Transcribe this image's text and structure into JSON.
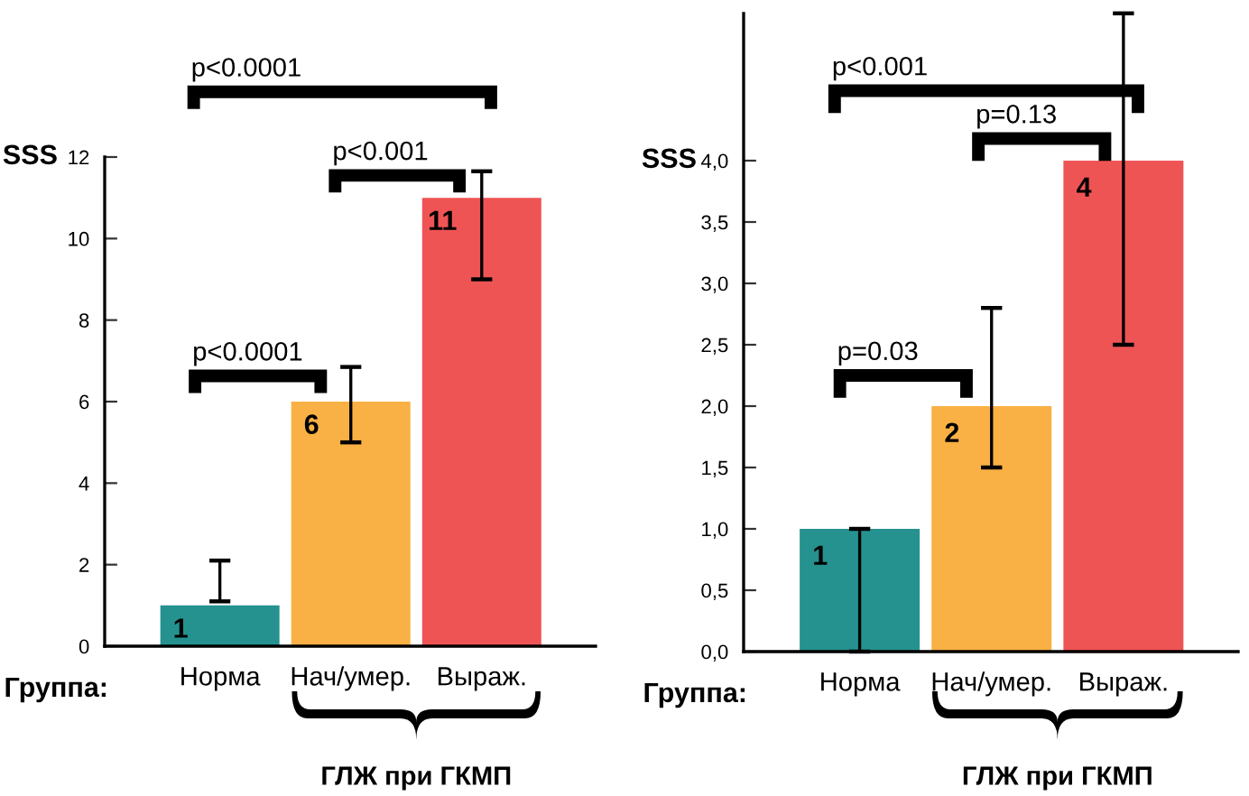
{
  "chart_data": [
    {
      "type": "bar",
      "ylabel": "SSS",
      "xlabel": "Группа:",
      "categories": [
        "Норма",
        "Нач/умер.",
        "Выраж."
      ],
      "values": [
        1,
        6,
        11
      ],
      "colors": [
        "#25928f",
        "#f9b044",
        "#ef5455"
      ],
      "errors": [
        [
          1.1,
          2.1
        ],
        [
          5.0,
          6.85
        ],
        [
          9.0,
          11.65
        ]
      ],
      "data_labels": true,
      "ylim": [
        0,
        12
      ],
      "yticks": [
        0,
        2,
        4,
        6,
        8,
        10,
        12
      ],
      "grid": false,
      "legend": false,
      "annotations": [
        "p<0.0001",
        "p<0.001",
        "p<0.0001",
        "ГЛЖ при ГКМП"
      ]
    },
    {
      "type": "bar",
      "ylabel": "SSS",
      "xlabel": "Группа:",
      "categories": [
        "Норма",
        "Нач/умер.",
        "Выраж."
      ],
      "values": [
        1,
        2,
        4
      ],
      "colors": [
        "#25928f",
        "#f9b044",
        "#ef5455"
      ],
      "errors": [
        [
          0.0,
          1.0
        ],
        [
          1.5,
          2.8
        ],
        [
          2.5,
          5.2
        ]
      ],
      "data_labels": true,
      "ylim": [
        0,
        5.2
      ],
      "yticks": [
        {
          "value": 0,
          "label": "0,0"
        },
        {
          "value": 0.5,
          "label": "0,5"
        },
        {
          "value": 1,
          "label": "1,0"
        },
        {
          "value": 1.5,
          "label": "1,5"
        },
        {
          "value": 2,
          "label": "2,0"
        },
        {
          "value": 2.5,
          "label": "2,5"
        },
        {
          "value": 3,
          "label": "3,0"
        },
        {
          "value": 3.5,
          "label": "3,5"
        },
        {
          "value": 4,
          "label": "4,0"
        }
      ],
      "grid": false,
      "legend": false,
      "annotations": [
        "p<0.001",
        "p=0.13",
        "p=0.03",
        "ГЛЖ при ГКМП"
      ]
    }
  ]
}
